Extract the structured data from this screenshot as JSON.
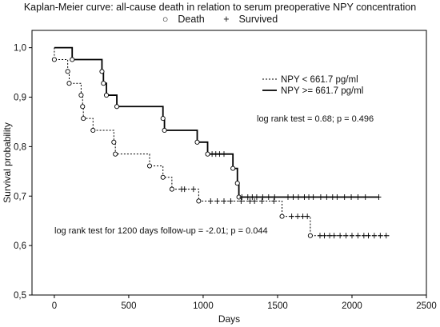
{
  "chart_data": {
    "type": "line",
    "title": "Kaplan-Meier curve: all-cause death in relation to serum preoperative NPY concentration",
    "marker_legend": {
      "death_symbol": "○",
      "death_label": "Death",
      "censor_symbol": "+",
      "censor_label": "Survived"
    },
    "xlabel": "Days",
    "ylabel": "Survival probability",
    "xlim": [
      -150,
      2500
    ],
    "ylim": [
      0.5,
      1.035
    ],
    "xticks": [
      "0",
      "500",
      "1000",
      "1500",
      "2000",
      "2500"
    ],
    "xtick_values": [
      0,
      500,
      1000,
      1500,
      2000,
      2500
    ],
    "yticks": [
      "0,5",
      "0,6",
      "0,7",
      "0,8",
      "0,9",
      "1,0"
    ],
    "ytick_values": [
      0.5,
      0.6,
      0.7,
      0.8,
      0.9,
      1.0
    ],
    "grid": false,
    "legend_position": "top-right",
    "series": [
      {
        "name": "NPY < 661.7 pg/ml",
        "style": "dotted",
        "steps": [
          [
            0,
            1.0
          ],
          [
            0,
            0.976
          ],
          [
            90,
            0.952
          ],
          [
            100,
            0.928
          ],
          [
            180,
            0.904
          ],
          [
            190,
            0.881
          ],
          [
            195,
            0.857
          ],
          [
            260,
            0.833
          ],
          [
            400,
            0.809
          ],
          [
            410,
            0.785
          ],
          [
            640,
            0.761
          ],
          [
            730,
            0.738
          ],
          [
            790,
            0.714
          ],
          [
            970,
            0.69
          ],
          [
            1530,
            0.659
          ],
          [
            1720,
            0.62
          ]
        ],
        "end": 2250,
        "deaths": [
          [
            0,
            0.976
          ],
          [
            90,
            0.952
          ],
          [
            100,
            0.928
          ],
          [
            180,
            0.904
          ],
          [
            190,
            0.881
          ],
          [
            195,
            0.857
          ],
          [
            260,
            0.833
          ],
          [
            400,
            0.809
          ],
          [
            410,
            0.785
          ],
          [
            640,
            0.761
          ],
          [
            730,
            0.738
          ],
          [
            790,
            0.714
          ],
          [
            970,
            0.69
          ],
          [
            1530,
            0.659
          ],
          [
            1720,
            0.62
          ]
        ],
        "censored": [
          [
            855,
            0.714
          ],
          [
            875,
            0.714
          ],
          [
            935,
            0.714
          ],
          [
            1050,
            0.69
          ],
          [
            1095,
            0.69
          ],
          [
            1140,
            0.69
          ],
          [
            1185,
            0.69
          ],
          [
            1255,
            0.69
          ],
          [
            1315,
            0.69
          ],
          [
            1345,
            0.69
          ],
          [
            1395,
            0.69
          ],
          [
            1475,
            0.69
          ],
          [
            1595,
            0.659
          ],
          [
            1635,
            0.659
          ],
          [
            1670,
            0.659
          ],
          [
            1700,
            0.659
          ],
          [
            1785,
            0.62
          ],
          [
            1815,
            0.62
          ],
          [
            1850,
            0.62
          ],
          [
            1880,
            0.62
          ],
          [
            1920,
            0.62
          ],
          [
            1960,
            0.62
          ],
          [
            2000,
            0.62
          ],
          [
            2040,
            0.62
          ],
          [
            2080,
            0.62
          ],
          [
            2110,
            0.62
          ],
          [
            2150,
            0.62
          ],
          [
            2190,
            0.62
          ],
          [
            2230,
            0.62
          ]
        ]
      },
      {
        "name": "NPY >= 661.7 pg/ml",
        "style": "solid",
        "steps": [
          [
            0,
            1.0
          ],
          [
            120,
            0.976
          ],
          [
            320,
            0.952
          ],
          [
            330,
            0.928
          ],
          [
            350,
            0.904
          ],
          [
            420,
            0.881
          ],
          [
            730,
            0.857
          ],
          [
            740,
            0.833
          ],
          [
            960,
            0.809
          ],
          [
            1030,
            0.785
          ],
          [
            1200,
            0.756
          ],
          [
            1230,
            0.726
          ],
          [
            1240,
            0.698
          ]
        ],
        "end": 2180,
        "deaths": [
          [
            120,
            0.976
          ],
          [
            320,
            0.952
          ],
          [
            330,
            0.928
          ],
          [
            350,
            0.904
          ],
          [
            420,
            0.881
          ],
          [
            730,
            0.857
          ],
          [
            740,
            0.833
          ],
          [
            960,
            0.809
          ],
          [
            1030,
            0.785
          ],
          [
            1200,
            0.756
          ],
          [
            1230,
            0.726
          ],
          [
            1240,
            0.698
          ]
        ],
        "censored": [
          [
            1060,
            0.785
          ],
          [
            1085,
            0.785
          ],
          [
            1110,
            0.785
          ],
          [
            1140,
            0.785
          ],
          [
            1260,
            0.698
          ],
          [
            1300,
            0.698
          ],
          [
            1330,
            0.698
          ],
          [
            1360,
            0.698
          ],
          [
            1400,
            0.698
          ],
          [
            1440,
            0.698
          ],
          [
            1480,
            0.698
          ],
          [
            1570,
            0.698
          ],
          [
            1605,
            0.698
          ],
          [
            1640,
            0.698
          ],
          [
            1680,
            0.698
          ],
          [
            1710,
            0.698
          ],
          [
            1740,
            0.698
          ],
          [
            1790,
            0.698
          ],
          [
            1830,
            0.698
          ],
          [
            1870,
            0.698
          ],
          [
            1900,
            0.698
          ],
          [
            1950,
            0.698
          ],
          [
            1995,
            0.698
          ],
          [
            2040,
            0.698
          ],
          [
            2090,
            0.698
          ],
          [
            2180,
            0.698
          ]
        ]
      }
    ],
    "annotations": [
      {
        "text": "log rank test = 0.68; p = 0.496"
      },
      {
        "text": "log rank test for 1200 days follow-up = -2.01; p = 0.044"
      }
    ]
  }
}
